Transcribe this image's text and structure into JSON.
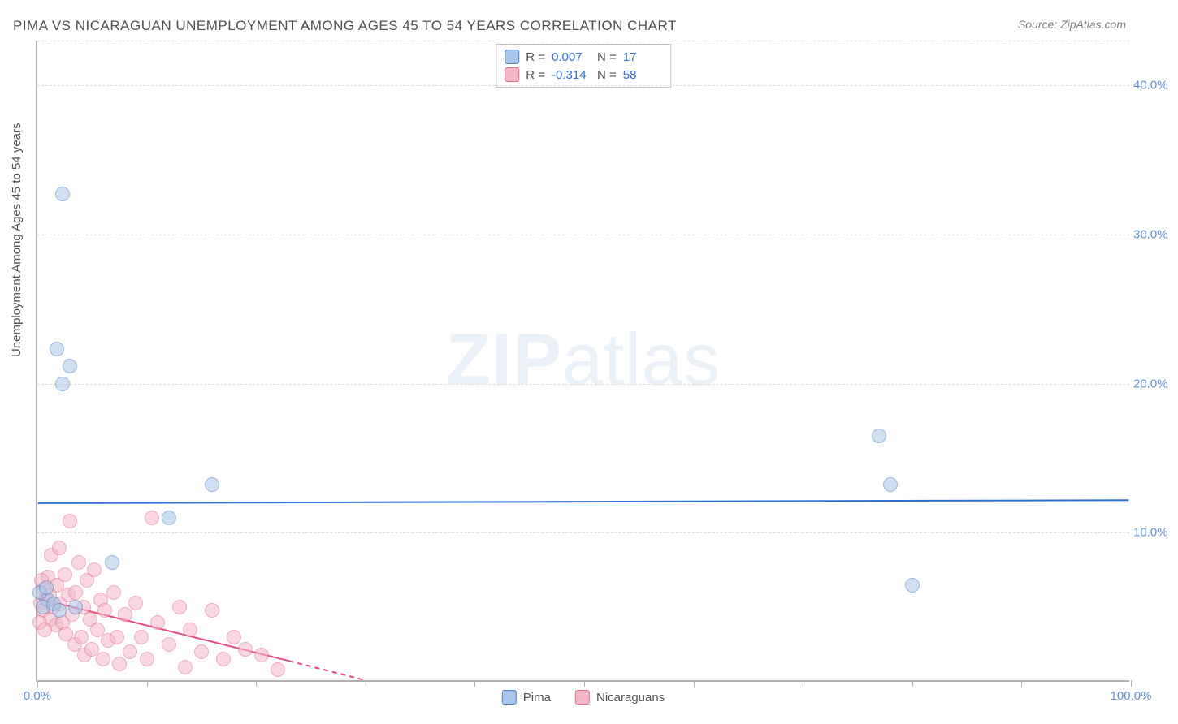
{
  "title": "PIMA VS NICARAGUAN UNEMPLOYMENT AMONG AGES 45 TO 54 YEARS CORRELATION CHART",
  "source": "Source: ZipAtlas.com",
  "y_axis_label": "Unemployment Among Ages 45 to 54 years",
  "watermark_bold": "ZIP",
  "watermark_light": "atlas",
  "chart": {
    "type": "scatter",
    "xlim": [
      0,
      100
    ],
    "ylim": [
      0,
      43
    ],
    "background_color": "#ffffff",
    "grid_color": "#dcdcdc",
    "axis_color": "#b0b0b0",
    "tick_label_color": "#6090d0",
    "y_grid_positions": [
      10,
      20,
      30,
      40,
      43
    ],
    "y_tick_labels": [
      {
        "pos": 10,
        "label": "10.0%"
      },
      {
        "pos": 20,
        "label": "20.0%"
      },
      {
        "pos": 30,
        "label": "30.0%"
      },
      {
        "pos": 40,
        "label": "40.0%"
      }
    ],
    "x_ticks": [
      0,
      10,
      20,
      30,
      40,
      50,
      60,
      70,
      80,
      90,
      100
    ],
    "x_tick_labels": [
      {
        "pos": 0,
        "label": "0.0%"
      },
      {
        "pos": 100,
        "label": "100.0%"
      }
    ],
    "marker_radius": 9,
    "marker_opacity": 0.55,
    "series": {
      "pima": {
        "label": "Pima",
        "fill": "#a8c7ea",
        "stroke": "#4a7fc0",
        "reg_line_color": "#2e6fd0",
        "reg_line_width": 2,
        "reg_y_start": 11.9,
        "reg_y_end": 12.1,
        "R": "0.007",
        "N": "17",
        "points": [
          {
            "x": 2.3,
            "y": 32.7
          },
          {
            "x": 1.8,
            "y": 22.3
          },
          {
            "x": 3.0,
            "y": 21.2
          },
          {
            "x": 2.3,
            "y": 20.0
          },
          {
            "x": 16.0,
            "y": 13.2
          },
          {
            "x": 12.0,
            "y": 11.0
          },
          {
            "x": 6.8,
            "y": 8.0
          },
          {
            "x": 1.0,
            "y": 5.5
          },
          {
            "x": 0.5,
            "y": 5.0
          },
          {
            "x": 77.0,
            "y": 16.5
          },
          {
            "x": 78.0,
            "y": 13.2
          },
          {
            "x": 80.0,
            "y": 6.5
          },
          {
            "x": 0.2,
            "y": 6.0
          },
          {
            "x": 0.8,
            "y": 6.3
          },
          {
            "x": 1.5,
            "y": 5.2
          },
          {
            "x": 2.0,
            "y": 4.8
          },
          {
            "x": 3.5,
            "y": 5.0
          }
        ]
      },
      "nica": {
        "label": "Nicaraguans",
        "fill": "#f5b8c9",
        "stroke": "#e06a8a",
        "reg_line_color": "#e84a7a",
        "reg_line_width": 2,
        "reg_y_start": 5.5,
        "reg_dash_start_x": 23,
        "reg_y_end_solid": 1.3,
        "reg_x_end_dash": 30,
        "reg_y_end_dash": 0,
        "R": "-0.314",
        "N": "58",
        "points": [
          {
            "x": 0.3,
            "y": 5.3
          },
          {
            "x": 0.5,
            "y": 4.8
          },
          {
            "x": 0.6,
            "y": 6.2
          },
          {
            "x": 0.8,
            "y": 5.5
          },
          {
            "x": 1.0,
            "y": 7.0
          },
          {
            "x": 1.2,
            "y": 4.2
          },
          {
            "x": 1.3,
            "y": 8.5
          },
          {
            "x": 1.5,
            "y": 5.0
          },
          {
            "x": 1.7,
            "y": 3.8
          },
          {
            "x": 1.8,
            "y": 6.5
          },
          {
            "x": 2.0,
            "y": 9.0
          },
          {
            "x": 2.1,
            "y": 5.2
          },
          {
            "x": 2.3,
            "y": 4.0
          },
          {
            "x": 2.5,
            "y": 7.2
          },
          {
            "x": 2.6,
            "y": 3.2
          },
          {
            "x": 2.8,
            "y": 5.8
          },
          {
            "x": 3.0,
            "y": 10.8
          },
          {
            "x": 3.2,
            "y": 4.5
          },
          {
            "x": 3.4,
            "y": 2.5
          },
          {
            "x": 3.5,
            "y": 6.0
          },
          {
            "x": 3.8,
            "y": 8.0
          },
          {
            "x": 4.0,
            "y": 3.0
          },
          {
            "x": 4.2,
            "y": 5.0
          },
          {
            "x": 4.3,
            "y": 1.8
          },
          {
            "x": 4.5,
            "y": 6.8
          },
          {
            "x": 4.8,
            "y": 4.2
          },
          {
            "x": 5.0,
            "y": 2.2
          },
          {
            "x": 5.2,
            "y": 7.5
          },
          {
            "x": 5.5,
            "y": 3.5
          },
          {
            "x": 5.8,
            "y": 5.5
          },
          {
            "x": 6.0,
            "y": 1.5
          },
          {
            "x": 6.2,
            "y": 4.8
          },
          {
            "x": 6.5,
            "y": 2.8
          },
          {
            "x": 7.0,
            "y": 6.0
          },
          {
            "x": 7.3,
            "y": 3.0
          },
          {
            "x": 7.5,
            "y": 1.2
          },
          {
            "x": 8.0,
            "y": 4.5
          },
          {
            "x": 8.5,
            "y": 2.0
          },
          {
            "x": 9.0,
            "y": 5.3
          },
          {
            "x": 9.5,
            "y": 3.0
          },
          {
            "x": 10.0,
            "y": 1.5
          },
          {
            "x": 10.5,
            "y": 11.0
          },
          {
            "x": 11.0,
            "y": 4.0
          },
          {
            "x": 12.0,
            "y": 2.5
          },
          {
            "x": 13.0,
            "y": 5.0
          },
          {
            "x": 13.5,
            "y": 1.0
          },
          {
            "x": 14.0,
            "y": 3.5
          },
          {
            "x": 15.0,
            "y": 2.0
          },
          {
            "x": 16.0,
            "y": 4.8
          },
          {
            "x": 17.0,
            "y": 1.5
          },
          {
            "x": 18.0,
            "y": 3.0
          },
          {
            "x": 19.0,
            "y": 2.2
          },
          {
            "x": 20.5,
            "y": 1.8
          },
          {
            "x": 22.0,
            "y": 0.8
          },
          {
            "x": 0.2,
            "y": 4.0
          },
          {
            "x": 0.4,
            "y": 6.8
          },
          {
            "x": 0.7,
            "y": 3.5
          },
          {
            "x": 1.1,
            "y": 5.8
          }
        ]
      }
    }
  },
  "stat_legend_rows": [
    {
      "swatch_fill": "#a8c7ea",
      "swatch_stroke": "#4a7fc0",
      "R_label": "R =",
      "R": "0.007",
      "N_label": "N =",
      "N": "17"
    },
    {
      "swatch_fill": "#f5b8c9",
      "swatch_stroke": "#e06a8a",
      "R_label": "R =",
      "R": "-0.314",
      "N_label": "N =",
      "N": "58"
    }
  ],
  "series_legend": [
    {
      "swatch_fill": "#a8c7ea",
      "swatch_stroke": "#4a7fc0",
      "label": "Pima"
    },
    {
      "swatch_fill": "#f5b8c9",
      "swatch_stroke": "#e06a8a",
      "label": "Nicaraguans"
    }
  ]
}
